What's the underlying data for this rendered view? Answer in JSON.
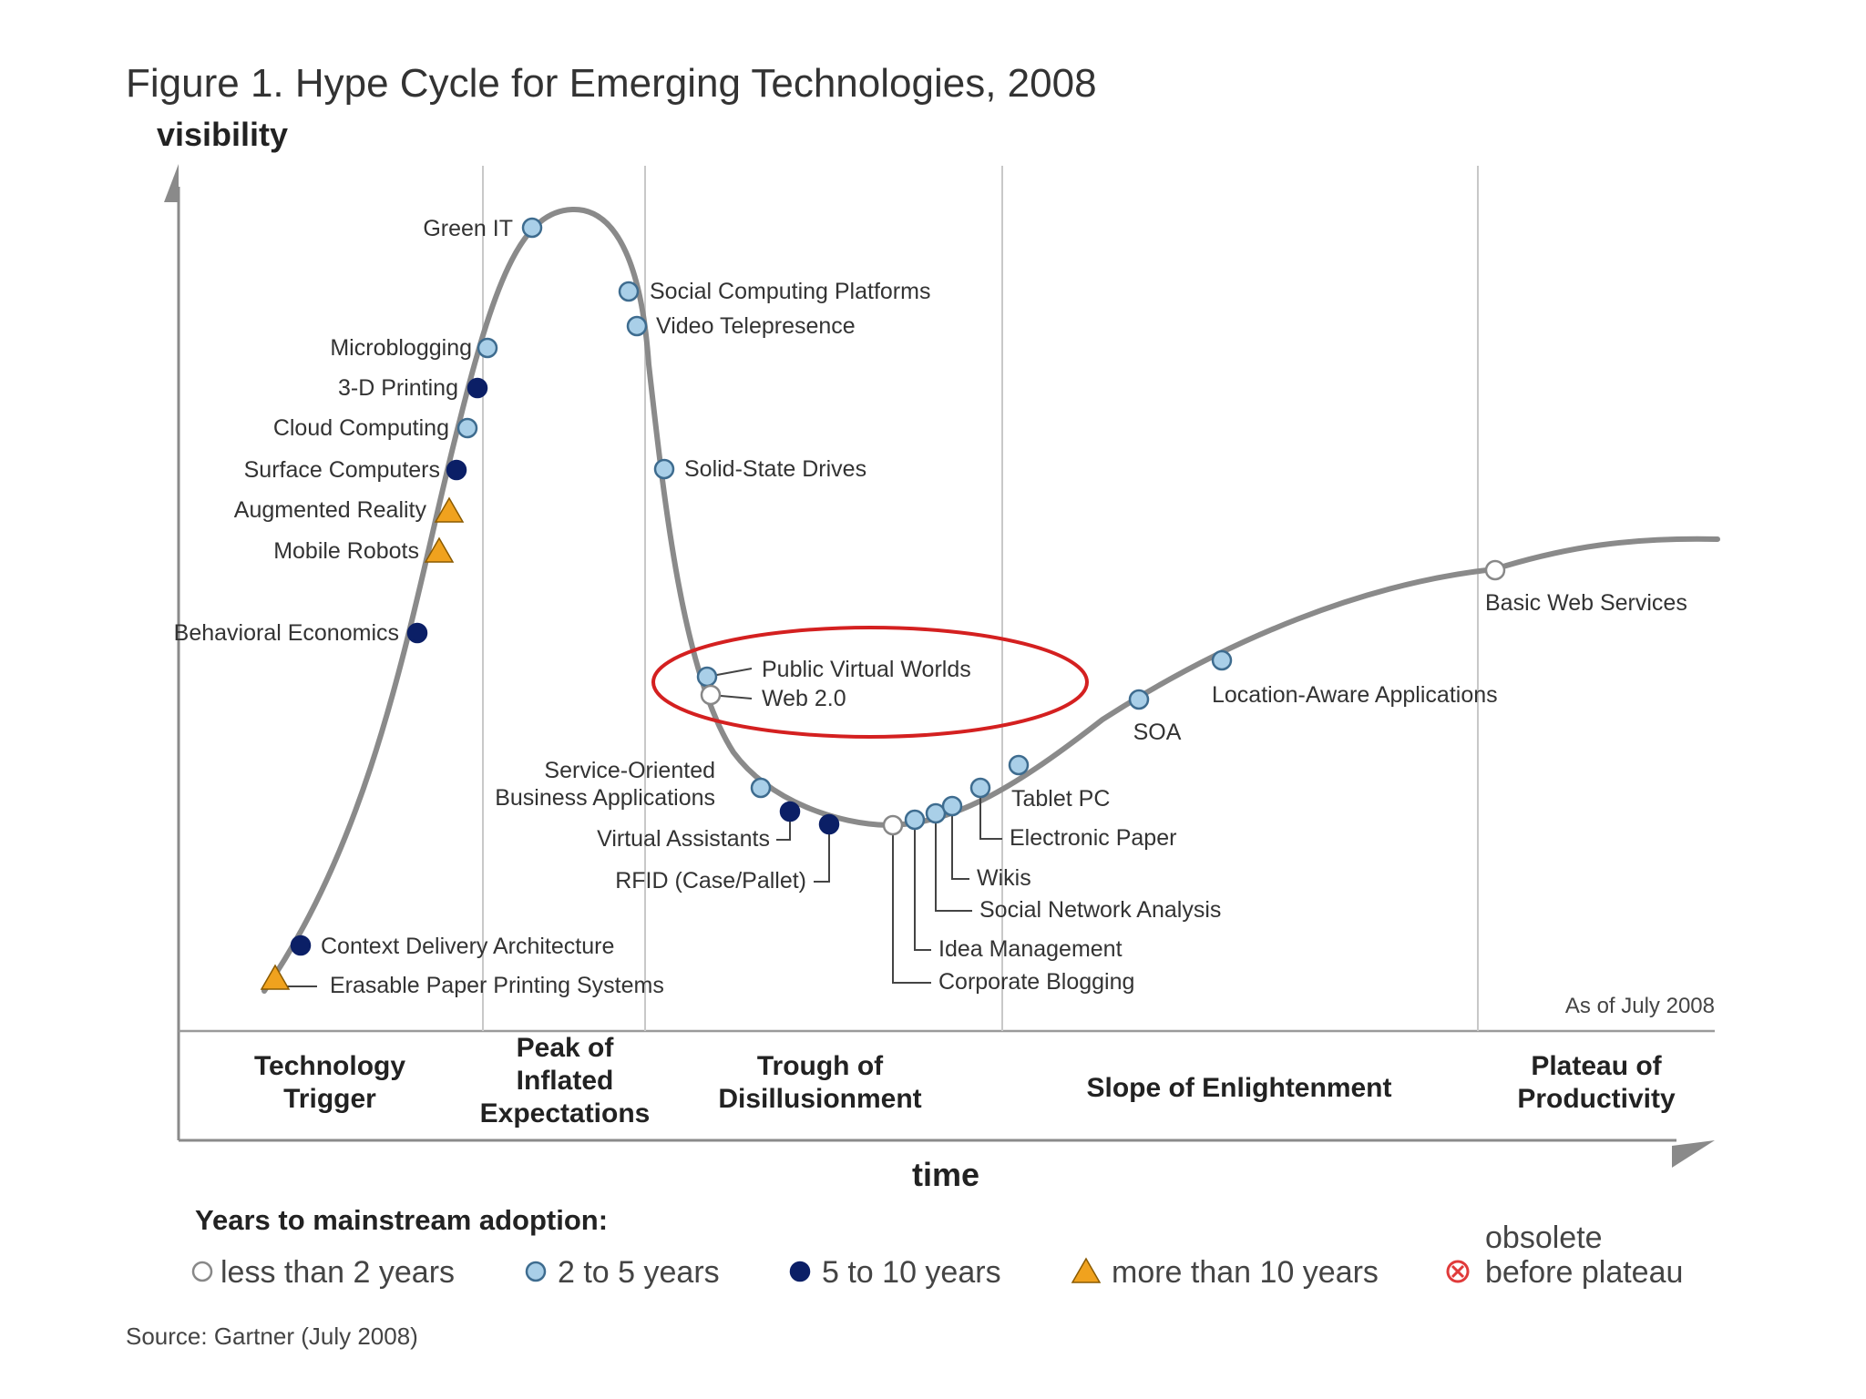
{
  "chart_data": {
    "type": "line",
    "title": "Figure 1. Hype Cycle for Emerging Technologies, 2008",
    "ylabel": "visibility",
    "xlabel": "time",
    "as_of": "As of July 2008",
    "source": "Source: Gartner (July 2008)",
    "phases": [
      {
        "name": "Technology Trigger",
        "lines": [
          "Technology",
          "Trigger"
        ]
      },
      {
        "name": "Peak of Inflated Expectations",
        "lines": [
          "Peak of",
          "Inflated",
          "Expectations"
        ]
      },
      {
        "name": "Trough of Disillusionment",
        "lines": [
          "Trough of",
          "Disillusionment"
        ]
      },
      {
        "name": "Slope of Enlightenment",
        "lines": [
          "Slope of Enlightenment"
        ]
      },
      {
        "name": "Plateau of Productivity",
        "lines": [
          "Plateau of",
          "Productivity"
        ]
      }
    ],
    "legend": {
      "title": "Years to mainstream adoption:",
      "items": [
        {
          "key": "lt2",
          "label": "less than 2 years"
        },
        {
          "key": "2to5",
          "label": "2 to 5 years"
        },
        {
          "key": "5to10",
          "label": "5 to 10 years"
        },
        {
          "key": "gt10",
          "label": "more than 10 years"
        },
        {
          "key": "obsolete",
          "label": "before plateau",
          "label_top": "obsolete"
        }
      ]
    },
    "colors": {
      "curve": "#8a8a8a",
      "lt2_fill": "#ffffff",
      "2to5_fill": "#a9cfe8",
      "5to10_fill": "#0b1f66",
      "gt10_fill": "#f0a21e",
      "obsolete": "#e03a3a",
      "highlight": "#d42020",
      "divider": "#c8c8c8"
    },
    "technologies": [
      {
        "name": "Green IT",
        "category": "2to5"
      },
      {
        "name": "Social Computing Platforms",
        "category": "2to5"
      },
      {
        "name": "Video Telepresence",
        "category": "2to5"
      },
      {
        "name": "Microblogging",
        "category": "2to5"
      },
      {
        "name": "3-D Printing",
        "category": "5to10"
      },
      {
        "name": "Cloud Computing",
        "category": "2to5"
      },
      {
        "name": "Surface Computers",
        "category": "5to10"
      },
      {
        "name": "Augmented Reality",
        "category": "gt10"
      },
      {
        "name": "Mobile Robots",
        "category": "gt10"
      },
      {
        "name": "Solid-State Drives",
        "category": "2to5"
      },
      {
        "name": "Behavioral Economics",
        "category": "5to10"
      },
      {
        "name": "Public Virtual Worlds",
        "category": "2to5",
        "highlighted": true
      },
      {
        "name": "Web 2.0",
        "category": "lt2",
        "highlighted": true
      },
      {
        "name": "Service-Oriented Business Applications",
        "category": "2to5"
      },
      {
        "name": "Virtual Assistants",
        "category": "5to10"
      },
      {
        "name": "RFID (Case/Pallet)",
        "category": "5to10"
      },
      {
        "name": "Corporate Blogging",
        "category": "lt2"
      },
      {
        "name": "Idea Management",
        "category": "2to5"
      },
      {
        "name": "Social Network Analysis",
        "category": "2to5"
      },
      {
        "name": "Wikis",
        "category": "2to5"
      },
      {
        "name": "Electronic Paper",
        "category": "2to5"
      },
      {
        "name": "Tablet PC",
        "category": "2to5"
      },
      {
        "name": "SOA",
        "category": "2to5"
      },
      {
        "name": "Location-Aware Applications",
        "category": "2to5"
      },
      {
        "name": "Basic Web Services",
        "category": "lt2"
      },
      {
        "name": "Context Delivery Architecture",
        "category": "5to10"
      },
      {
        "name": "Erasable Paper Printing Systems",
        "category": "gt10"
      }
    ]
  }
}
